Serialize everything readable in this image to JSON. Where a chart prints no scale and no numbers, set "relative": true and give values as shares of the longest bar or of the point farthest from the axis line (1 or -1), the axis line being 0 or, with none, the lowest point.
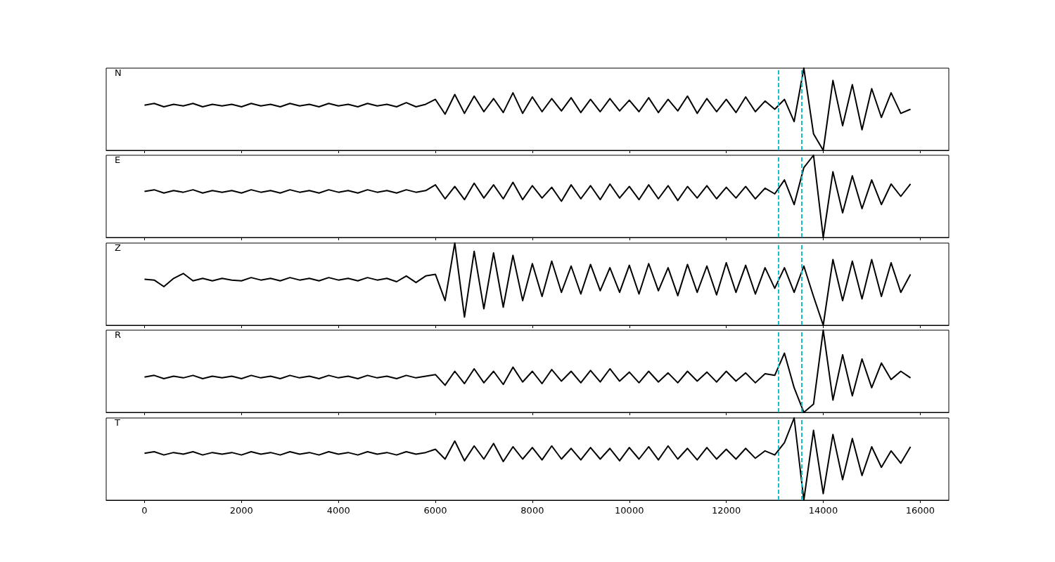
{
  "chart_data": [
    {
      "type": "line",
      "title": "N",
      "relative": true,
      "tick_labels": false,
      "xlim": [
        -790,
        16590
      ],
      "xticks": [
        0,
        2000,
        4000,
        6000,
        8000,
        10000,
        12000,
        14000,
        16000
      ],
      "x": [
        0,
        200,
        400,
        600,
        800,
        1000,
        1200,
        1400,
        1600,
        1800,
        2000,
        2200,
        2400,
        2600,
        2800,
        3000,
        3200,
        3400,
        3600,
        3800,
        4000,
        4200,
        4400,
        4600,
        4800,
        5000,
        5200,
        5400,
        5600,
        5800,
        6000,
        6200,
        6400,
        6600,
        6800,
        7000,
        7200,
        7400,
        7600,
        7800,
        8000,
        8200,
        8400,
        8600,
        8800,
        9000,
        9200,
        9400,
        9600,
        9800,
        10000,
        10200,
        10400,
        10600,
        10800,
        11000,
        11200,
        11400,
        11600,
        11800,
        12000,
        12200,
        12400,
        12600,
        12800,
        13000,
        13200,
        13400,
        13600,
        13800,
        14000,
        14200,
        14400,
        14600,
        14800,
        15000,
        15200,
        15400,
        15600,
        15800
      ],
      "series": [
        {
          "color": "#000000",
          "values": [
            0.55,
            0.57,
            0.53,
            0.56,
            0.54,
            0.57,
            0.53,
            0.56,
            0.54,
            0.56,
            0.53,
            0.57,
            0.54,
            0.56,
            0.53,
            0.57,
            0.54,
            0.56,
            0.53,
            0.57,
            0.54,
            0.56,
            0.53,
            0.57,
            0.54,
            0.56,
            0.53,
            0.58,
            0.53,
            0.56,
            0.62,
            0.44,
            0.68,
            0.45,
            0.66,
            0.47,
            0.63,
            0.46,
            0.7,
            0.45,
            0.65,
            0.47,
            0.63,
            0.48,
            0.64,
            0.46,
            0.62,
            0.47,
            0.63,
            0.48,
            0.61,
            0.47,
            0.64,
            0.46,
            0.62,
            0.48,
            0.66,
            0.45,
            0.63,
            0.47,
            0.62,
            0.46,
            0.65,
            0.47,
            0.6,
            0.5,
            0.62,
            0.35,
            1.0,
            0.2,
            0.0,
            0.85,
            0.3,
            0.8,
            0.25,
            0.75,
            0.4,
            0.7,
            0.45,
            0.5
          ]
        }
      ],
      "ref_lines": [
        {
          "axis": "x",
          "value": 13070,
          "color": "#17becf",
          "line_style": "dashed"
        },
        {
          "axis": "x",
          "value": 13560,
          "color": "#17becf",
          "line_style": "dashed"
        }
      ]
    },
    {
      "type": "line",
      "title": "E",
      "relative": true,
      "tick_labels": false,
      "xlim": [
        -790,
        16590
      ],
      "xticks": [
        0,
        2000,
        4000,
        6000,
        8000,
        10000,
        12000,
        14000,
        16000
      ],
      "x": [
        0,
        200,
        400,
        600,
        800,
        1000,
        1200,
        1400,
        1600,
        1800,
        2000,
        2200,
        2400,
        2600,
        2800,
        3000,
        3200,
        3400,
        3600,
        3800,
        4000,
        4200,
        4400,
        4600,
        4800,
        5000,
        5200,
        5400,
        5600,
        5800,
        6000,
        6200,
        6400,
        6600,
        6800,
        7000,
        7200,
        7400,
        7600,
        7800,
        8000,
        8200,
        8400,
        8600,
        8800,
        9000,
        9200,
        9400,
        9600,
        9800,
        10000,
        10200,
        10400,
        10600,
        10800,
        11000,
        11200,
        11400,
        11600,
        11800,
        12000,
        12200,
        12400,
        12600,
        12800,
        13000,
        13200,
        13400,
        13600,
        13800,
        14000,
        14200,
        14400,
        14600,
        14800,
        15000,
        15200,
        15400,
        15600,
        15800
      ],
      "series": [
        {
          "color": "#000000",
          "values": [
            0.56,
            0.58,
            0.54,
            0.57,
            0.55,
            0.58,
            0.54,
            0.57,
            0.55,
            0.57,
            0.54,
            0.58,
            0.55,
            0.57,
            0.54,
            0.58,
            0.55,
            0.57,
            0.54,
            0.58,
            0.55,
            0.57,
            0.54,
            0.58,
            0.55,
            0.57,
            0.54,
            0.58,
            0.55,
            0.57,
            0.64,
            0.47,
            0.62,
            0.46,
            0.66,
            0.48,
            0.64,
            0.47,
            0.67,
            0.46,
            0.63,
            0.48,
            0.61,
            0.44,
            0.64,
            0.47,
            0.63,
            0.46,
            0.65,
            0.48,
            0.62,
            0.46,
            0.64,
            0.47,
            0.63,
            0.45,
            0.62,
            0.48,
            0.63,
            0.47,
            0.61,
            0.48,
            0.62,
            0.47,
            0.6,
            0.53,
            0.7,
            0.4,
            0.85,
            1.0,
            0.0,
            0.8,
            0.3,
            0.75,
            0.35,
            0.7,
            0.4,
            0.65,
            0.5,
            0.65
          ]
        }
      ],
      "ref_lines": [
        {
          "axis": "x",
          "value": 13070,
          "color": "#17becf",
          "line_style": "dashed"
        },
        {
          "axis": "x",
          "value": 13560,
          "color": "#17becf",
          "line_style": "dashed"
        }
      ]
    },
    {
      "type": "line",
      "title": "Z",
      "relative": true,
      "tick_labels": false,
      "xlim": [
        -790,
        16590
      ],
      "xticks": [
        0,
        2000,
        4000,
        6000,
        8000,
        10000,
        12000,
        14000,
        16000
      ],
      "x": [
        0,
        200,
        400,
        600,
        800,
        1000,
        1200,
        1400,
        1600,
        1800,
        2000,
        2200,
        2400,
        2600,
        2800,
        3000,
        3200,
        3400,
        3600,
        3800,
        4000,
        4200,
        4400,
        4600,
        4800,
        5000,
        5200,
        5400,
        5600,
        5800,
        6000,
        6200,
        6400,
        6600,
        6800,
        7000,
        7200,
        7400,
        7600,
        7800,
        8000,
        8200,
        8400,
        8600,
        8800,
        9000,
        9200,
        9400,
        9600,
        9800,
        10000,
        10200,
        10400,
        10600,
        10800,
        11000,
        11200,
        11400,
        11600,
        11800,
        12000,
        12200,
        12400,
        12600,
        12800,
        13000,
        13200,
        13400,
        13600,
        13800,
        14000,
        14200,
        14400,
        14600,
        14800,
        15000,
        15200,
        15400,
        15600,
        15800
      ],
      "series": [
        {
          "color": "#000000",
          "values": [
            0.56,
            0.55,
            0.47,
            0.57,
            0.63,
            0.54,
            0.57,
            0.54,
            0.57,
            0.55,
            0.54,
            0.58,
            0.55,
            0.57,
            0.54,
            0.58,
            0.55,
            0.57,
            0.54,
            0.58,
            0.55,
            0.57,
            0.54,
            0.58,
            0.55,
            0.57,
            0.53,
            0.6,
            0.52,
            0.6,
            0.62,
            0.3,
            1.0,
            0.1,
            0.9,
            0.2,
            0.88,
            0.22,
            0.85,
            0.3,
            0.75,
            0.35,
            0.78,
            0.4,
            0.72,
            0.38,
            0.74,
            0.42,
            0.7,
            0.4,
            0.73,
            0.38,
            0.75,
            0.42,
            0.7,
            0.36,
            0.74,
            0.4,
            0.72,
            0.37,
            0.76,
            0.4,
            0.73,
            0.38,
            0.7,
            0.45,
            0.7,
            0.4,
            0.72,
            0.35,
            0.0,
            0.8,
            0.3,
            0.78,
            0.32,
            0.8,
            0.35,
            0.76,
            0.4,
            0.62
          ]
        }
      ],
      "ref_lines": [
        {
          "axis": "x",
          "value": 13070,
          "color": "#17becf",
          "line_style": "dashed"
        },
        {
          "axis": "x",
          "value": 13560,
          "color": "#17becf",
          "line_style": "dashed"
        }
      ]
    },
    {
      "type": "line",
      "title": "R",
      "relative": true,
      "tick_labels": false,
      "xlim": [
        -790,
        16590
      ],
      "xticks": [
        0,
        2000,
        4000,
        6000,
        8000,
        10000,
        12000,
        14000,
        16000
      ],
      "x": [
        0,
        200,
        400,
        600,
        800,
        1000,
        1200,
        1400,
        1600,
        1800,
        2000,
        2200,
        2400,
        2600,
        2800,
        3000,
        3200,
        3400,
        3600,
        3800,
        4000,
        4200,
        4400,
        4600,
        4800,
        5000,
        5200,
        5400,
        5600,
        5800,
        6000,
        6200,
        6400,
        6600,
        6800,
        7000,
        7200,
        7400,
        7600,
        7800,
        8000,
        8200,
        8400,
        8600,
        8800,
        9000,
        9200,
        9400,
        9600,
        9800,
        10000,
        10200,
        10400,
        10600,
        10800,
        11000,
        11200,
        11400,
        11600,
        11800,
        12000,
        12200,
        12400,
        12600,
        12800,
        13000,
        13200,
        13400,
        13600,
        13800,
        14000,
        14200,
        14400,
        14600,
        14800,
        15000,
        15200,
        15400,
        15600,
        15800
      ],
      "series": [
        {
          "color": "#000000",
          "values": [
            0.43,
            0.45,
            0.41,
            0.44,
            0.42,
            0.45,
            0.41,
            0.44,
            0.42,
            0.44,
            0.41,
            0.45,
            0.42,
            0.44,
            0.41,
            0.45,
            0.42,
            0.44,
            0.41,
            0.45,
            0.42,
            0.44,
            0.41,
            0.45,
            0.42,
            0.44,
            0.41,
            0.45,
            0.42,
            0.44,
            0.46,
            0.33,
            0.5,
            0.35,
            0.53,
            0.36,
            0.5,
            0.34,
            0.55,
            0.37,
            0.5,
            0.35,
            0.52,
            0.38,
            0.5,
            0.36,
            0.51,
            0.37,
            0.53,
            0.38,
            0.49,
            0.36,
            0.5,
            0.37,
            0.48,
            0.36,
            0.5,
            0.38,
            0.49,
            0.37,
            0.5,
            0.38,
            0.48,
            0.36,
            0.47,
            0.45,
            0.72,
            0.3,
            0.0,
            0.1,
            1.0,
            0.15,
            0.7,
            0.2,
            0.65,
            0.3,
            0.6,
            0.4,
            0.5,
            0.42
          ]
        }
      ],
      "ref_lines": [
        {
          "axis": "x",
          "value": 13070,
          "color": "#17becf",
          "line_style": "dashed"
        },
        {
          "axis": "x",
          "value": 13560,
          "color": "#17becf",
          "line_style": "dashed"
        }
      ]
    },
    {
      "type": "line",
      "title": "T",
      "relative": true,
      "tick_labels": "x",
      "xlim": [
        -790,
        16590
      ],
      "xticks": [
        0,
        2000,
        4000,
        6000,
        8000,
        10000,
        12000,
        14000,
        16000
      ],
      "x": [
        0,
        200,
        400,
        600,
        800,
        1000,
        1200,
        1400,
        1600,
        1800,
        2000,
        2200,
        2400,
        2600,
        2800,
        3000,
        3200,
        3400,
        3600,
        3800,
        4000,
        4200,
        4400,
        4600,
        4800,
        5000,
        5200,
        5400,
        5600,
        5800,
        6000,
        6200,
        6400,
        6600,
        6800,
        7000,
        7200,
        7400,
        7600,
        7800,
        8000,
        8200,
        8400,
        8600,
        8800,
        9000,
        9200,
        9400,
        9600,
        9800,
        10000,
        10200,
        10400,
        10600,
        10800,
        11000,
        11200,
        11400,
        11600,
        11800,
        12000,
        12200,
        12400,
        12600,
        12800,
        13000,
        13200,
        13400,
        13600,
        13800,
        14000,
        14200,
        14400,
        14600,
        14800,
        15000,
        15200,
        15400,
        15600,
        15800
      ],
      "series": [
        {
          "color": "#000000",
          "values": [
            0.57,
            0.59,
            0.55,
            0.58,
            0.56,
            0.59,
            0.55,
            0.58,
            0.56,
            0.58,
            0.55,
            0.59,
            0.56,
            0.58,
            0.55,
            0.59,
            0.56,
            0.58,
            0.55,
            0.59,
            0.56,
            0.58,
            0.55,
            0.59,
            0.56,
            0.58,
            0.55,
            0.59,
            0.56,
            0.58,
            0.62,
            0.5,
            0.72,
            0.48,
            0.66,
            0.5,
            0.69,
            0.47,
            0.65,
            0.5,
            0.64,
            0.49,
            0.66,
            0.5,
            0.63,
            0.49,
            0.64,
            0.5,
            0.63,
            0.48,
            0.64,
            0.5,
            0.65,
            0.49,
            0.66,
            0.5,
            0.63,
            0.49,
            0.64,
            0.5,
            0.62,
            0.5,
            0.63,
            0.51,
            0.6,
            0.55,
            0.7,
            1.0,
            0.0,
            0.85,
            0.08,
            0.8,
            0.25,
            0.75,
            0.3,
            0.65,
            0.4,
            0.6,
            0.45,
            0.65
          ]
        }
      ],
      "ref_lines": [
        {
          "axis": "x",
          "value": 13070,
          "color": "#17becf",
          "line_style": "dashed"
        },
        {
          "axis": "x",
          "value": 13560,
          "color": "#17becf",
          "line_style": "dashed"
        }
      ]
    }
  ]
}
